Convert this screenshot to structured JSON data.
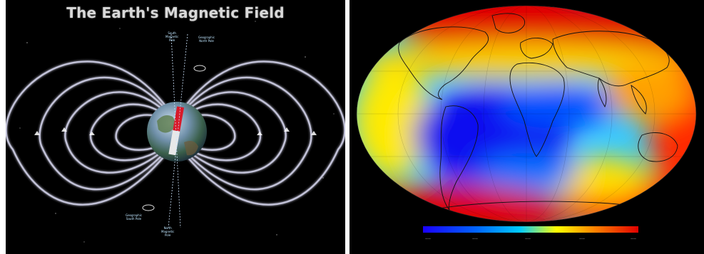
{
  "left_figure": {
    "title": "The Earth's Magnetic Field",
    "labels": {
      "south_magnetic_pole": "South\nMagnetic\nPole",
      "geographic_north_pole": "Geographic\nNorth Pole",
      "geographic_south_pole": "Geographic\nSouth Pole",
      "north_magnetic_pole": "North\nMagnetic\nPole"
    }
  },
  "right_figure": {
    "colorbar_colors": [
      "#1a00ff",
      "#0066ff",
      "#00ccff",
      "#ffff00",
      "#ff8000",
      "#e00000"
    ],
    "scale_labels": [
      "——",
      "——",
      "——",
      "——",
      "——"
    ]
  }
}
